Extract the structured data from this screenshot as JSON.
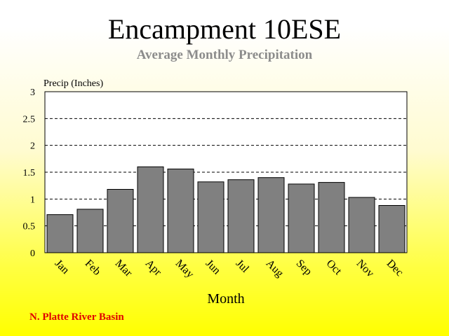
{
  "page": {
    "title": "Encampment 10ESE",
    "subtitle": "Average Monthly Precipitation",
    "footer": "N. Platte River Basin"
  },
  "colors": {
    "bar_fill": "#808080",
    "plot_bg": "#ffffff",
    "footer_text": "#e00000",
    "subtitle_text": "#8c8c8c"
  },
  "chart_data": {
    "type": "bar",
    "title": "Encampment 10ESE",
    "subtitle": "Average Monthly Precipitation",
    "xlabel": "Month",
    "ylabel": "Precip (Inches)",
    "categories": [
      "Jan",
      "Feb",
      "Mar",
      "Apr",
      "May",
      "Jun",
      "Jul",
      "Aug",
      "Sep",
      "Oct",
      "Nov",
      "Dec"
    ],
    "values": [
      0.71,
      0.81,
      1.18,
      1.6,
      1.56,
      1.32,
      1.36,
      1.4,
      1.28,
      1.31,
      1.03,
      0.88
    ],
    "ylim": [
      0,
      3
    ],
    "yticks": [
      "0",
      "0.5",
      "1",
      "1.5",
      "2",
      "2.5",
      "3"
    ],
    "grid": "dashed horizontal",
    "legend": "none"
  }
}
